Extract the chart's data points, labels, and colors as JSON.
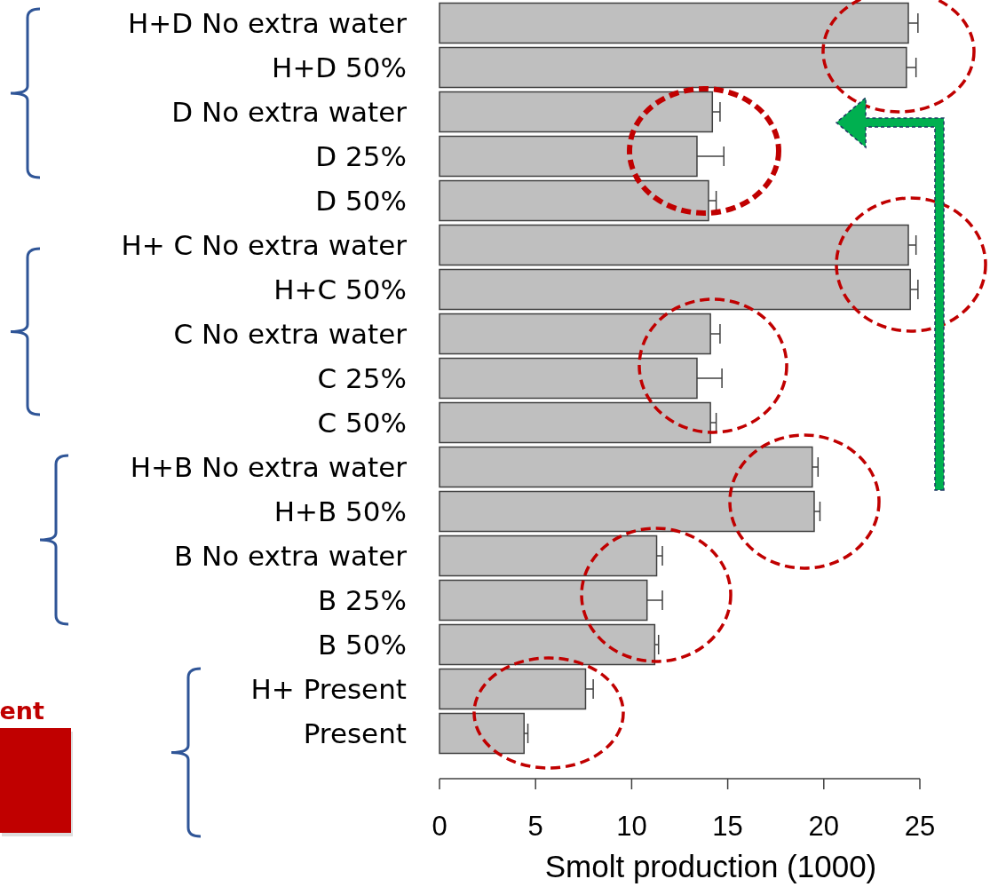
{
  "chart_data": {
    "type": "bar",
    "orientation": "horizontal",
    "categories": [
      "H+D No extra water",
      "H+D 50%",
      "D No extra water",
      "D 25%",
      "D 50%",
      "H+ C No extra water",
      "H+C 50%",
      "C No extra water",
      "C 25%",
      "C 50%",
      "H+B No extra water",
      "H+B 50%",
      "B No extra water",
      "B 25%",
      "B 50%",
      "H+ Present",
      "Present"
    ],
    "values": [
      24.4,
      24.3,
      14.2,
      13.4,
      14.0,
      24.4,
      24.5,
      14.1,
      13.4,
      14.1,
      19.4,
      19.5,
      11.3,
      10.8,
      11.2,
      7.6,
      4.4
    ],
    "errors": [
      [
        24.4,
        24.9
      ],
      [
        24.3,
        24.8
      ],
      [
        14.2,
        14.6
      ],
      [
        13.4,
        14.8
      ],
      [
        14.0,
        14.4
      ],
      [
        24.4,
        24.8
      ],
      [
        24.5,
        24.9
      ],
      [
        14.1,
        14.6
      ],
      [
        13.4,
        14.7
      ],
      [
        14.1,
        14.4
      ],
      [
        19.4,
        19.7
      ],
      [
        19.5,
        19.8
      ],
      [
        11.3,
        11.6
      ],
      [
        10.8,
        11.6
      ],
      [
        11.2,
        11.4
      ],
      [
        7.6,
        8.0
      ],
      [
        4.4,
        4.6
      ]
    ],
    "color": "#bfbfbf",
    "xlim": [
      0,
      25
    ],
    "xticks": [
      0,
      5,
      10,
      15,
      20,
      25
    ],
    "xlabel": "Smolt production (1000)",
    "annotations": [
      "ent"
    ]
  }
}
